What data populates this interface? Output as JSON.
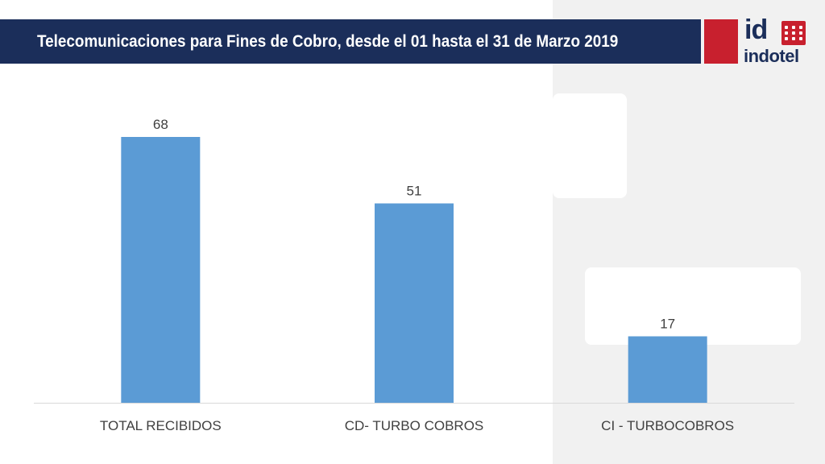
{
  "header": {
    "title": "Telecomunicaciones para Fines de Cobro, desde el 01 hasta el 31 de Marzo 2019"
  },
  "logo": {
    "mark": "id",
    "name": "indotel",
    "colors": {
      "navy": "#1b2e5a",
      "red": "#c8202e"
    }
  },
  "chart_data": {
    "type": "bar",
    "categories": [
      "TOTAL RECIBIDOS",
      "CD- TURBO COBROS",
      "CI - TURBOCOBROS"
    ],
    "values": [
      68,
      51,
      17
    ],
    "data_labels": [
      "68",
      "51",
      "17"
    ],
    "title": "",
    "xlabel": "",
    "ylabel": "",
    "ylim": [
      0,
      68
    ],
    "grid": false,
    "legend": "none",
    "bar_color": "#5b9bd5"
  }
}
